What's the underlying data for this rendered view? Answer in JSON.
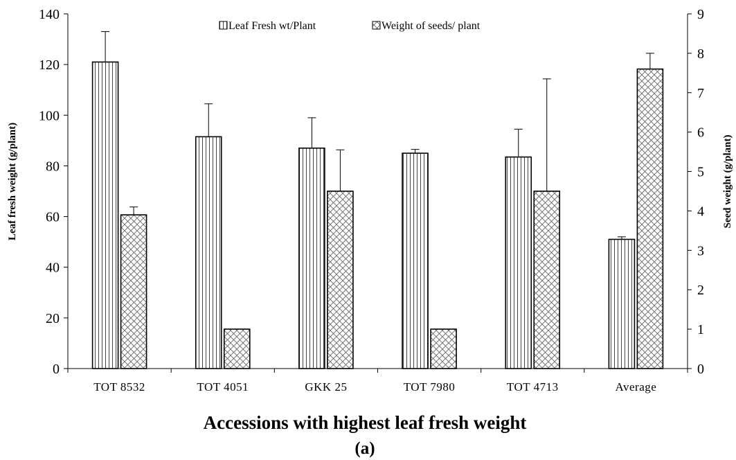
{
  "chart_data": {
    "type": "bar",
    "categories": [
      "TOT  8532",
      "TOT  4051",
      "GKK 25",
      "TOT  7980",
      "TOT  4713",
      "Average"
    ],
    "series": [
      {
        "name": "Leaf Fresh wt/Plant",
        "axis": "left",
        "pattern": "vertical-lines",
        "values": [
          121,
          91.5,
          87,
          85,
          83.5,
          51
        ],
        "error_upper": [
          12,
          13,
          12,
          1.5,
          11,
          1
        ]
      },
      {
        "name": "Weight of seeds/ plant",
        "axis": "right",
        "pattern": "crosshatch",
        "values": [
          3.9,
          1,
          4.5,
          1,
          4.5,
          7.6
        ],
        "error_upper": [
          0.2,
          0,
          1.05,
          0,
          2.85,
          0.4
        ]
      }
    ],
    "xlabel": "Accessions with highest leaf fresh weight",
    "subtitle": "(a)",
    "ylabel_left": "Leaf fresh weight (g/plant)",
    "ylabel_right": "Seed weight (g/plant)",
    "ylim_left": [
      0,
      140
    ],
    "yticks_left": [
      0,
      20,
      40,
      60,
      80,
      100,
      120,
      140
    ],
    "ylim_right": [
      0,
      9
    ],
    "yticks_right": [
      0,
      1,
      2,
      3,
      4,
      5,
      6,
      7,
      8,
      9
    ],
    "legend_position": "top-center",
    "grid": false
  }
}
